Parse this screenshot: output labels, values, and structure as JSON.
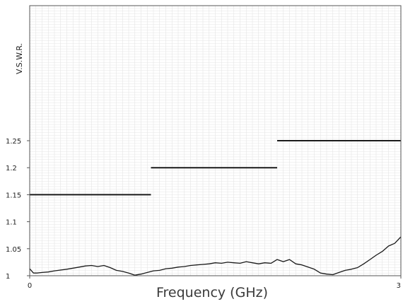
{
  "chart_data": {
    "type": "line",
    "xlabel": "Frequency (GHz)",
    "ylabel": "V.S.W.R.",
    "xlim": [
      0,
      3
    ],
    "ylim": [
      1,
      1.5
    ],
    "x_ticks": [
      0,
      3
    ],
    "x_tick_labels": [
      "0",
      "3"
    ],
    "y_ticks": [
      1,
      1.05,
      1.1,
      1.15,
      1.2,
      1.25
    ],
    "y_tick_labels": [
      "1",
      "1.05",
      "1.1",
      "1.15",
      "1.2",
      "1.25"
    ],
    "grid": true,
    "colors": {
      "line": "#1a1a1a",
      "grid": "#e4e4e4",
      "frame": "#555555"
    },
    "spec_limits": [
      {
        "x": [
          0,
          0.98
        ],
        "y": 1.15
      },
      {
        "x": [
          0.98,
          2.0
        ],
        "y": 1.2
      },
      {
        "x": [
          2.0,
          3.0
        ],
        "y": 1.25
      }
    ],
    "series": [
      {
        "x": [
          0,
          0.03,
          0.06,
          0.1,
          0.15,
          0.2,
          0.3,
          0.4,
          0.45,
          0.5,
          0.55,
          0.6,
          0.65,
          0.7,
          0.75,
          0.8,
          0.85,
          0.9,
          0.95,
          1.0,
          1.05,
          1.1,
          1.15,
          1.2,
          1.25,
          1.3,
          1.35,
          1.4,
          1.45,
          1.5,
          1.55,
          1.6,
          1.65,
          1.7,
          1.75,
          1.8,
          1.85,
          1.9,
          1.95,
          2.0,
          2.05,
          2.1,
          2.15,
          2.2,
          2.25,
          2.3,
          2.35,
          2.4,
          2.45,
          2.5,
          2.55,
          2.6,
          2.65,
          2.7,
          2.75,
          2.8,
          2.85,
          2.9,
          2.95,
          3.0
        ],
        "y": [
          1.013,
          1.005,
          1.005,
          1.006,
          1.007,
          1.009,
          1.012,
          1.016,
          1.018,
          1.019,
          1.017,
          1.019,
          1.015,
          1.01,
          1.008,
          1.005,
          1.001,
          1.003,
          1.006,
          1.009,
          1.01,
          1.013,
          1.014,
          1.016,
          1.017,
          1.019,
          1.02,
          1.021,
          1.022,
          1.024,
          1.023,
          1.025,
          1.024,
          1.023,
          1.026,
          1.024,
          1.022,
          1.024,
          1.023,
          1.03,
          1.026,
          1.03,
          1.022,
          1.02,
          1.016,
          1.012,
          1.005,
          1.003,
          1.002,
          1.006,
          1.01,
          1.012,
          1.015,
          1.022,
          1.03,
          1.038,
          1.045,
          1.055,
          1.06,
          1.072
        ]
      }
    ]
  }
}
